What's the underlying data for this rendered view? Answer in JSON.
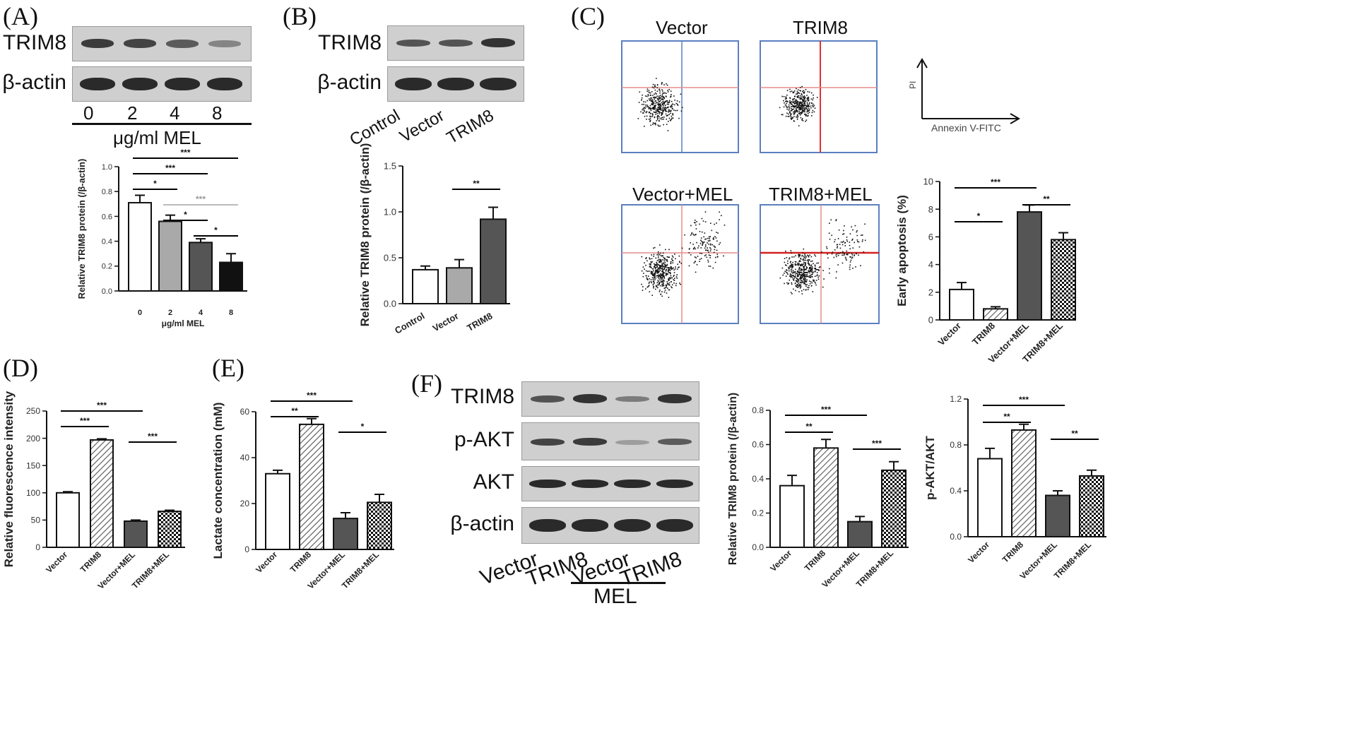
{
  "panels": {
    "A": "(A)",
    "B": "(B)",
    "C": "(C)",
    "D": "(D)",
    "E": "(E)",
    "F": "(F)"
  },
  "A": {
    "wb_labels": [
      "TRIM8",
      "β-actin"
    ],
    "lanes": [
      "0",
      "2",
      "4",
      "8"
    ],
    "lane_caption": "μg/ml MEL",
    "band_intensity": {
      "TRIM8": [
        0.9,
        0.85,
        0.7,
        0.45
      ],
      "beta_actin": [
        1,
        1,
        1,
        1
      ]
    }
  },
  "B": {
    "wb_labels": [
      "TRIM8",
      "β-actin"
    ],
    "lanes": [
      "Control",
      "Vector",
      "TRIM8"
    ],
    "band_intensity": {
      "TRIM8": [
        0.75,
        0.75,
        0.95
      ],
      "beta_actin": [
        1,
        1,
        1
      ]
    }
  },
  "C": {
    "plots": [
      "Vector",
      "TRIM8",
      "Vector+MEL",
      "TRIM8+MEL"
    ],
    "axis_x": "Annexin V-FITC",
    "axis_y": "PI"
  },
  "F": {
    "wb_labels": [
      "TRIM8",
      "p-AKT",
      "AKT",
      "β-actin"
    ],
    "lanes": [
      "Vector",
      "TRIM8",
      "Vector",
      "TRIM8"
    ],
    "group_caption": "MEL",
    "band_intensity": {
      "TRIM8": [
        0.75,
        0.95,
        0.5,
        0.95
      ],
      "p_AKT": [
        0.85,
        0.9,
        0.3,
        0.7
      ],
      "AKT": [
        1,
        1,
        1,
        1
      ],
      "beta_actin": [
        1,
        1,
        1,
        1
      ]
    }
  },
  "chart_data": [
    {
      "id": "A",
      "type": "bar",
      "categories": [
        "0",
        "2",
        "4",
        "8"
      ],
      "values": [
        0.71,
        0.56,
        0.39,
        0.23
      ],
      "errors": [
        0.06,
        0.05,
        0.03,
        0.07
      ],
      "fills": [
        "#ffffff",
        "#a9a9a9",
        "#555555",
        "#111111"
      ],
      "xlabel": "μg/ml MEL",
      "ylabel": "Relative TRIM8 protein (/β-actin)",
      "ylim": [
        0,
        1.0
      ],
      "yticks": [
        "0.0",
        "0.2",
        "0.4",
        "0.6",
        "0.8",
        "1.0"
      ],
      "sig": [
        {
          "from": 0,
          "to": 3,
          "label": "***",
          "color": "#000"
        },
        {
          "from": 0,
          "to": 2,
          "label": "***",
          "color": "#000"
        },
        {
          "from": 0,
          "to": 1,
          "label": "*",
          "color": "#000"
        },
        {
          "from": 1,
          "to": 3,
          "label": "***",
          "color": "#bbb"
        },
        {
          "from": 1,
          "to": 2,
          "label": "*",
          "color": "#000"
        },
        {
          "from": 2,
          "to": 3,
          "label": "*",
          "color": "#000"
        }
      ]
    },
    {
      "id": "B",
      "type": "bar",
      "categories": [
        "Control",
        "Vector",
        "TRIM8"
      ],
      "values": [
        0.37,
        0.39,
        0.92
      ],
      "errors": [
        0.04,
        0.09,
        0.13
      ],
      "fills": [
        "#ffffff",
        "#a9a9a9",
        "#555555"
      ],
      "xlabel": "",
      "ylabel": "Relative TRIM8 protein (/β-actin)",
      "ylim": [
        0,
        1.5
      ],
      "yticks": [
        "0.0",
        "0.5",
        "1.0",
        "1.5"
      ],
      "sig": [
        {
          "from": 1,
          "to": 2,
          "label": "**",
          "color": "#000"
        }
      ]
    },
    {
      "id": "C",
      "type": "bar",
      "categories": [
        "Vector",
        "TRIM8",
        "Vector+MEL",
        "TRIM8+MEL"
      ],
      "values": [
        2.2,
        0.8,
        7.8,
        5.8
      ],
      "errors": [
        0.5,
        0.15,
        0.5,
        0.5
      ],
      "fills": [
        "#ffffff",
        "hatch",
        "#555555",
        "check"
      ],
      "xlabel": "",
      "ylabel": "Early apoptosis (%)",
      "ylim": [
        0,
        10
      ],
      "yticks": [
        "0",
        "2",
        "4",
        "6",
        "8",
        "10"
      ],
      "sig": [
        {
          "from": 0,
          "to": 2,
          "label": "***",
          "color": "#000"
        },
        {
          "from": 2,
          "to": 3,
          "label": "**",
          "color": "#000"
        },
        {
          "from": 0,
          "to": 1,
          "label": "*",
          "color": "#000"
        }
      ]
    },
    {
      "id": "D",
      "type": "bar",
      "categories": [
        "Vector",
        "TRIM8",
        "Vector+MEL",
        "TRIM8+MEL"
      ],
      "values": [
        100,
        197,
        48,
        66
      ],
      "errors": [
        2,
        2,
        2,
        2
      ],
      "fills": [
        "#ffffff",
        "hatch",
        "#555555",
        "check"
      ],
      "xlabel": "",
      "ylabel": "Relative fluorescence intensity",
      "ylim": [
        0,
        250
      ],
      "yticks": [
        "0",
        "50",
        "100",
        "150",
        "200",
        "250"
      ],
      "sig": [
        {
          "from": 0,
          "to": 2,
          "label": "***",
          "color": "#000"
        },
        {
          "from": 0,
          "to": 1,
          "label": "***",
          "color": "#000"
        },
        {
          "from": 2,
          "to": 3,
          "label": "***",
          "color": "#000"
        }
      ]
    },
    {
      "id": "E",
      "type": "bar",
      "categories": [
        "Vector",
        "TRIM8",
        "Vector+MEL",
        "TRIM8+MEL"
      ],
      "values": [
        33,
        54.5,
        13.5,
        20.5
      ],
      "errors": [
        1.5,
        2.5,
        2.5,
        3.5
      ],
      "fills": [
        "#ffffff",
        "hatch",
        "#555555",
        "check"
      ],
      "xlabel": "",
      "ylabel": "Lactate concentration (mM)",
      "ylim": [
        0,
        60
      ],
      "yticks": [
        "0",
        "20",
        "40",
        "60"
      ],
      "sig": [
        {
          "from": 0,
          "to": 2,
          "label": "***",
          "color": "#000"
        },
        {
          "from": 0,
          "to": 1,
          "label": "**",
          "color": "#000"
        },
        {
          "from": 2,
          "to": 3,
          "label": "*",
          "color": "#000"
        }
      ]
    },
    {
      "id": "F1",
      "type": "bar",
      "categories": [
        "Vector",
        "TRIM8",
        "Vector+MEL",
        "TRIM8+MEL"
      ],
      "values": [
        0.36,
        0.58,
        0.15,
        0.45
      ],
      "errors": [
        0.06,
        0.05,
        0.03,
        0.05
      ],
      "fills": [
        "#ffffff",
        "hatch",
        "#555555",
        "check"
      ],
      "xlabel": "",
      "ylabel": "Relative TRIM8 protein (/β-actin)",
      "ylim": [
        0,
        0.8
      ],
      "yticks": [
        "0.0",
        "0.2",
        "0.4",
        "0.6",
        "0.8"
      ],
      "sig": [
        {
          "from": 0,
          "to": 2,
          "label": "***",
          "color": "#000"
        },
        {
          "from": 0,
          "to": 1,
          "label": "**",
          "color": "#000"
        },
        {
          "from": 2,
          "to": 3,
          "label": "***",
          "color": "#000"
        }
      ]
    },
    {
      "id": "F2",
      "type": "bar",
      "categories": [
        "Vector",
        "TRIM8",
        "Vector+MEL",
        "TRIM8+MEL"
      ],
      "values": [
        0.68,
        0.93,
        0.36,
        0.53
      ],
      "errors": [
        0.09,
        0.05,
        0.04,
        0.05
      ],
      "fills": [
        "#ffffff",
        "hatch",
        "#555555",
        "check"
      ],
      "xlabel": "",
      "ylabel": "p-AKT/AKT",
      "ylim": [
        0,
        1.2
      ],
      "yticks": [
        "0.0",
        "0.4",
        "0.8",
        "1.2"
      ],
      "sig": [
        {
          "from": 0,
          "to": 2,
          "label": "***",
          "color": "#000"
        },
        {
          "from": 0,
          "to": 1,
          "label": "**",
          "color": "#000"
        },
        {
          "from": 2,
          "to": 3,
          "label": "**",
          "color": "#000"
        }
      ]
    }
  ]
}
